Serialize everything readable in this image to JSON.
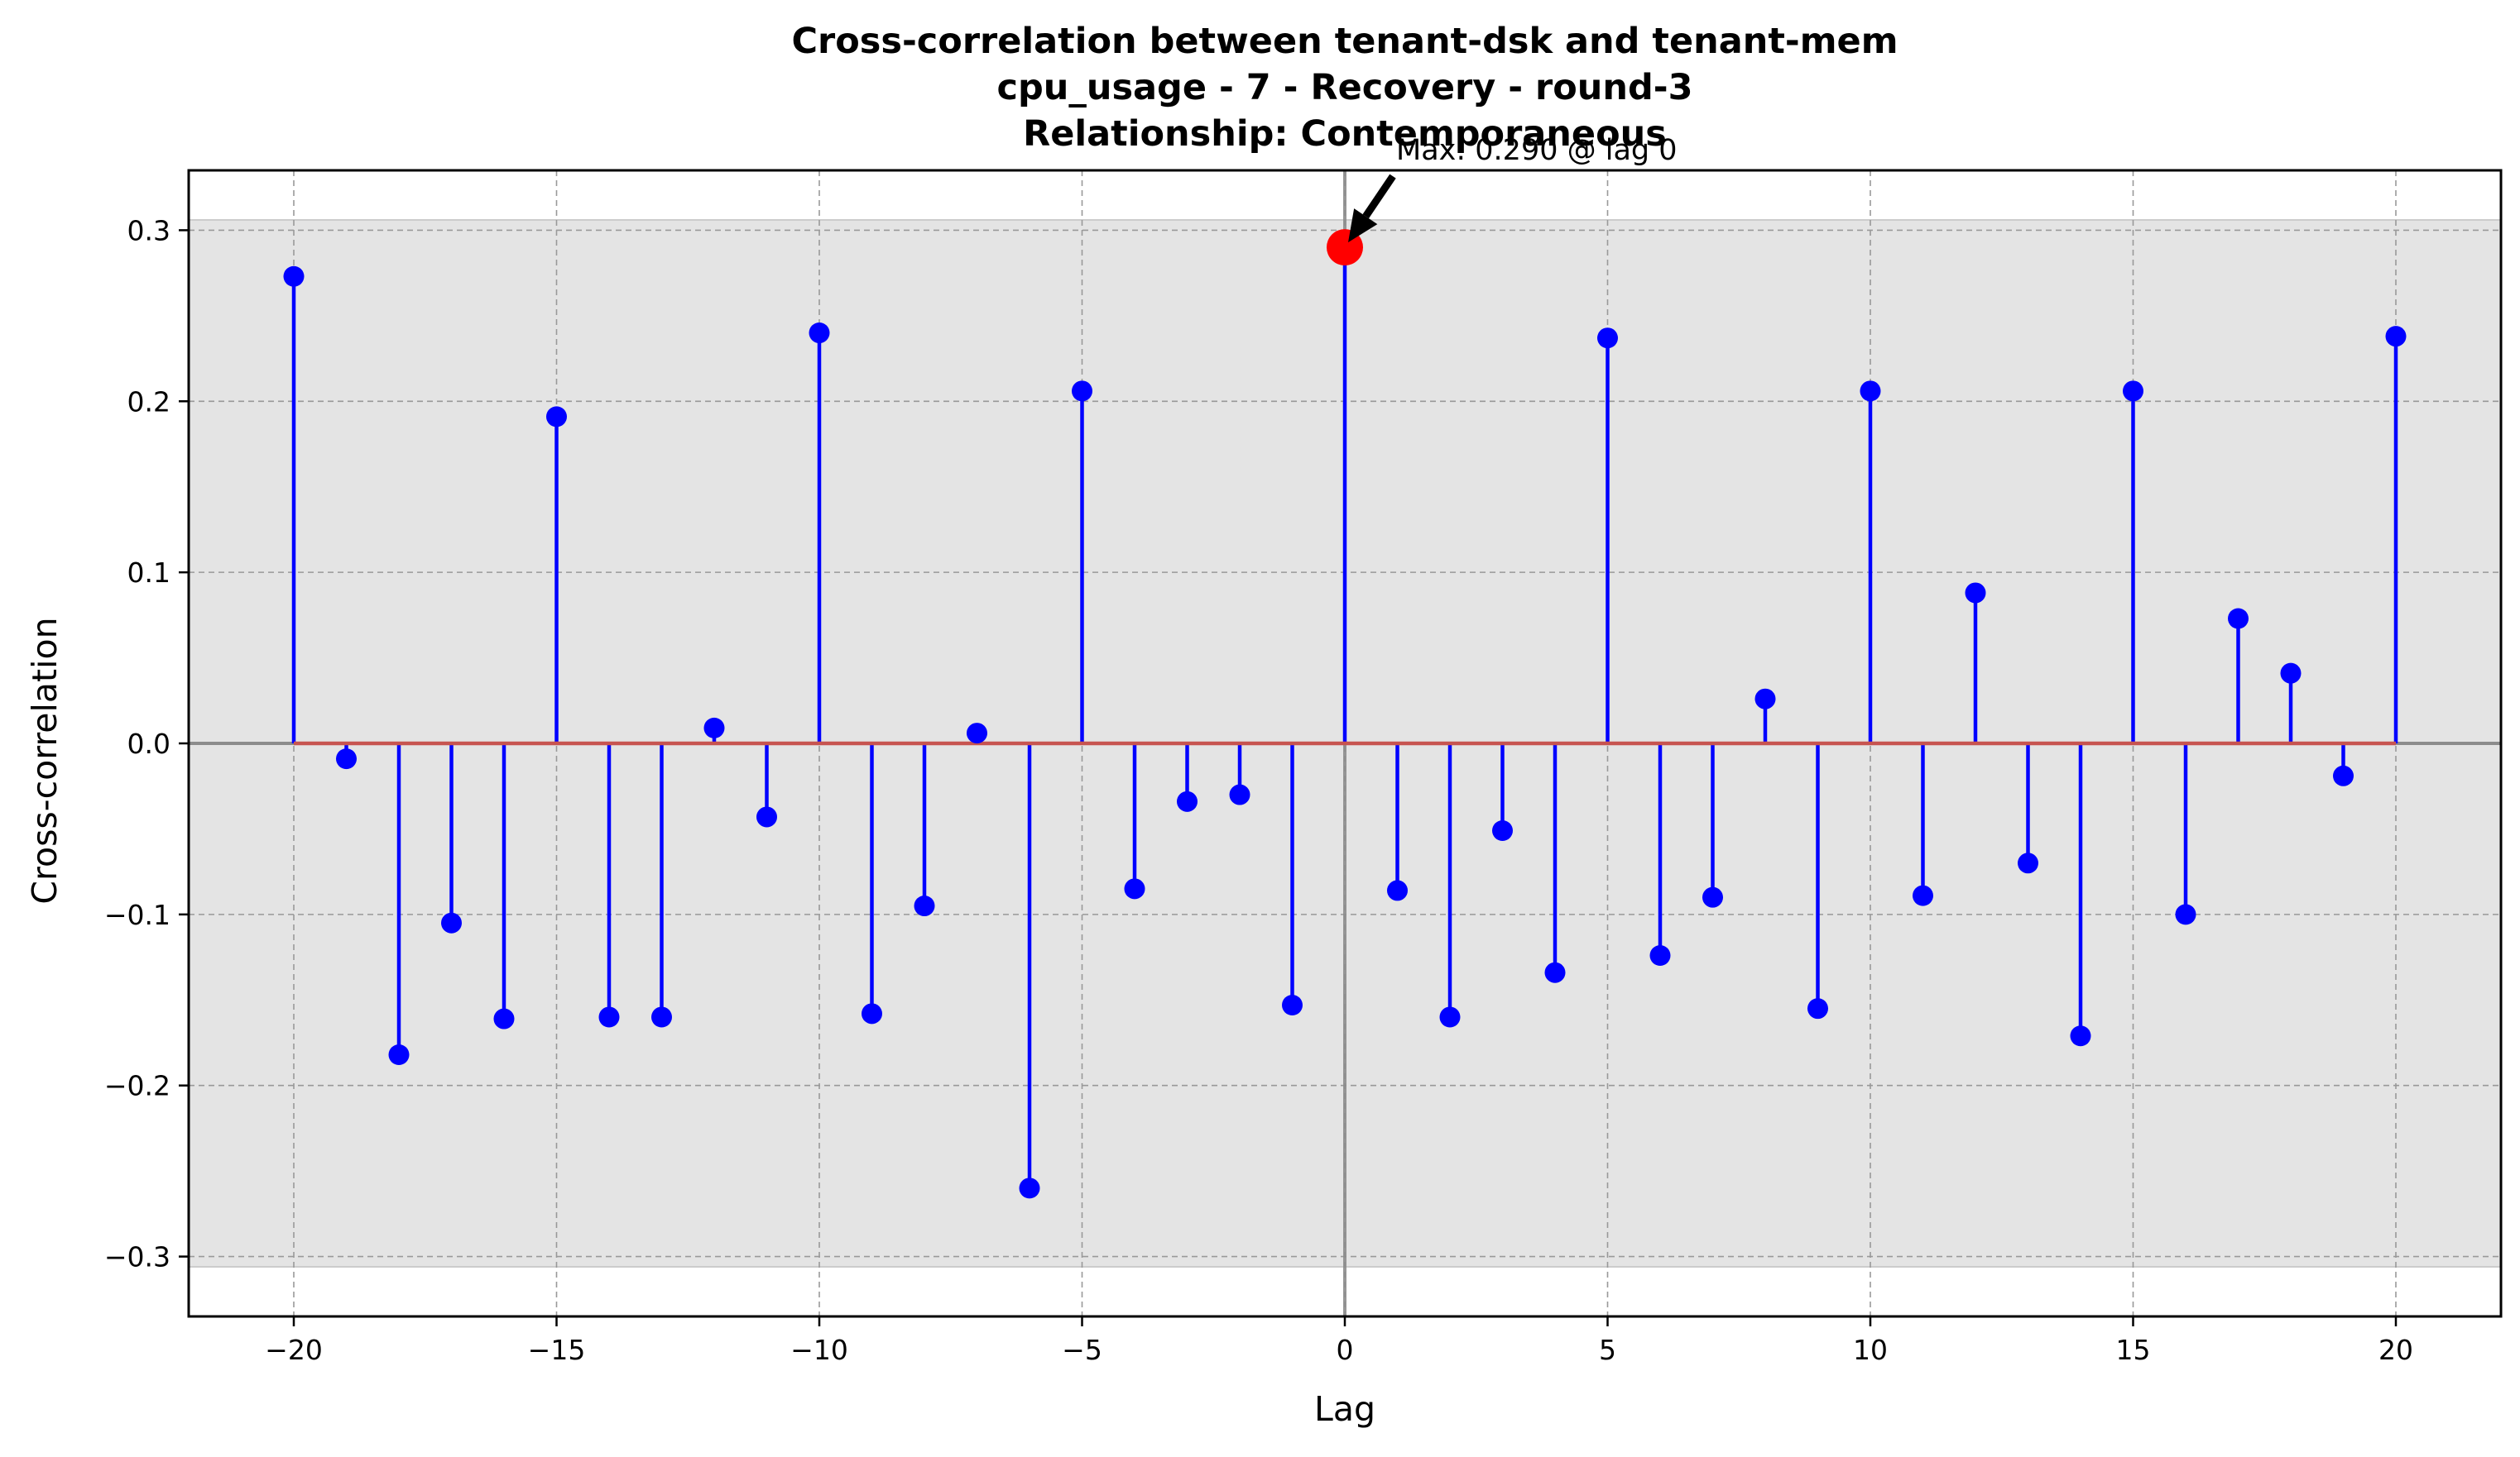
{
  "chart_data": {
    "type": "stem",
    "title_lines": [
      "Cross-correlation between tenant-dsk and tenant-mem",
      "cpu_usage - 7 - Recovery - round-3",
      "Relationship: Contemporaneous"
    ],
    "xlabel": "Lag",
    "ylabel": "Cross-correlation",
    "xlim": [
      -22,
      22
    ],
    "ylim": [
      -0.335,
      0.335
    ],
    "xticks": [
      -20,
      -15,
      -10,
      -5,
      0,
      5,
      10,
      15,
      20
    ],
    "xtick_labels": [
      "−20",
      "−15",
      "−10",
      "−5",
      "0",
      "5",
      "10",
      "15",
      "20"
    ],
    "yticks": [
      -0.3,
      -0.2,
      -0.1,
      0.0,
      0.1,
      0.2,
      0.3
    ],
    "ytick_labels": [
      "−0.3",
      "−0.2",
      "−0.1",
      "0.0",
      "0.1",
      "0.2",
      "0.3"
    ],
    "grid": true,
    "confidence_band": [
      -0.306,
      0.306
    ],
    "x": [
      -20,
      -19,
      -18,
      -17,
      -16,
      -15,
      -14,
      -13,
      -12,
      -11,
      -10,
      -9,
      -8,
      -7,
      -6,
      -5,
      -4,
      -3,
      -2,
      -1,
      0,
      1,
      2,
      3,
      4,
      5,
      6,
      7,
      8,
      9,
      10,
      11,
      12,
      13,
      14,
      15,
      16,
      17,
      18,
      19,
      20
    ],
    "values": [
      0.273,
      -0.009,
      -0.182,
      -0.105,
      -0.161,
      0.191,
      -0.16,
      -0.16,
      0.009,
      -0.043,
      0.24,
      -0.158,
      -0.095,
      0.006,
      -0.26,
      0.206,
      -0.085,
      -0.034,
      -0.03,
      -0.153,
      0.29,
      -0.086,
      -0.16,
      -0.051,
      -0.134,
      0.237,
      -0.124,
      -0.09,
      0.026,
      -0.155,
      0.206,
      -0.089,
      0.088,
      -0.07,
      -0.171,
      0.206,
      -0.1,
      0.073,
      0.041,
      -0.019,
      0.238
    ],
    "max_point": {
      "lag": 0,
      "value": 0.29
    },
    "annotation": "Max: 0.290 @ lag 0",
    "colors": {
      "stem": "#0000ff",
      "marker": "#0000ff",
      "max_marker": "#ff0000",
      "baseline": "#c75450",
      "band": "#e4e4e4",
      "grid": "#999999",
      "zero_lines": "#8c8c8c",
      "arrow": "#000000"
    }
  }
}
